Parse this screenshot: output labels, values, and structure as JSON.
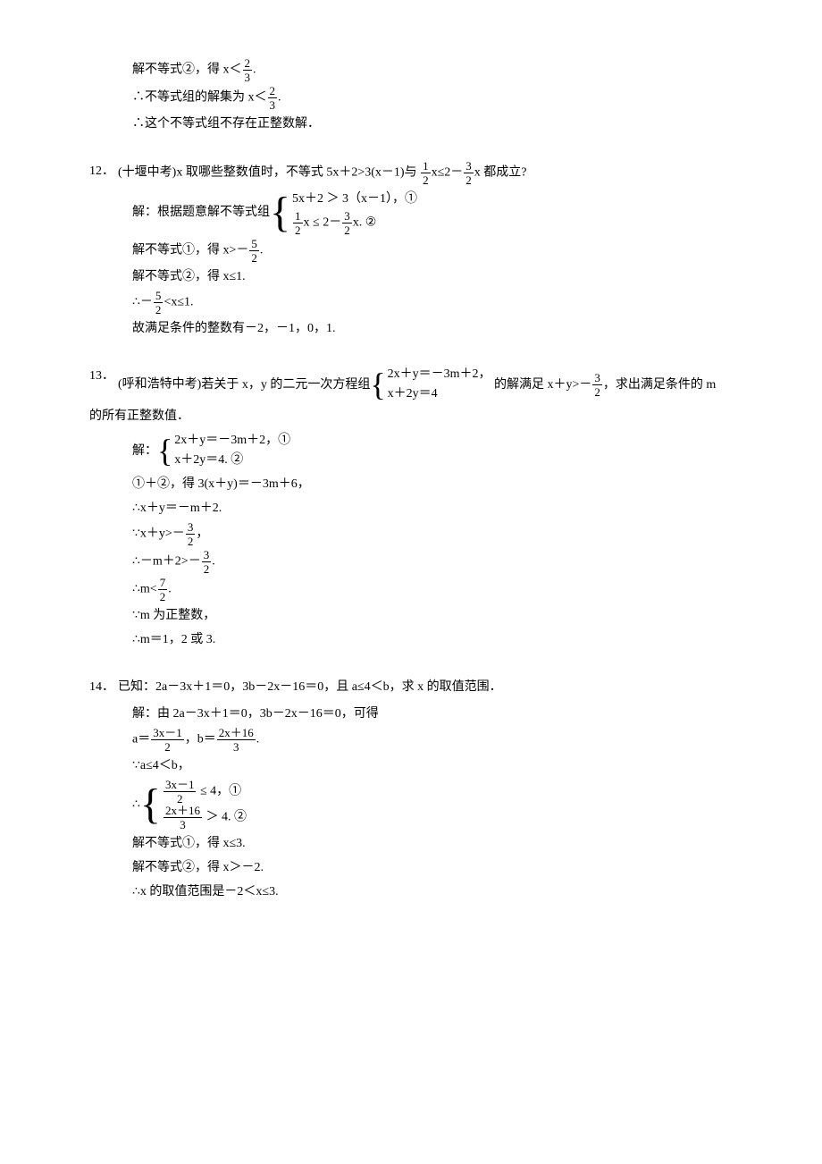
{
  "intro": {
    "line1_pre": "解不等式②，得 x＜",
    "frac1": {
      "num": "2",
      "den": "3"
    },
    "line1_suf": ".",
    "line2_pre": "∴不等式组的解集为 x＜",
    "line2_suf": ".",
    "line3": "∴这个不等式组不存在正整数解．"
  },
  "p12": {
    "num": "12．",
    "source": "(十堰中考)",
    "q_pre": "x 取哪些整数值时，不等式 5x＋2>3(x－1)与 ",
    "frac_a": {
      "num": "1",
      "den": "2"
    },
    "q_mid1": "x≤2－",
    "frac_b": {
      "num": "3",
      "den": "2"
    },
    "q_suf": "x 都成立?",
    "s_open": "解：根据题意解不等式组",
    "sys_eq1": "5x＋2 ＞ 3（x－1），①",
    "sys_eq2_part1": "x  ≤  2－",
    "sys_eq2_part2": "x. ②",
    "l1_pre": "解不等式①，得 x>－",
    "frac_c": {
      "num": "5",
      "den": "2"
    },
    "l1_suf": ".",
    "l2": "解不等式②，得 x≤1.",
    "l3_pre": "∴－",
    "l3_suf": "<x≤1.",
    "l4": "故满足条件的整数有－2，－1，0，1."
  },
  "p13": {
    "num": "13．",
    "source": "(呼和浩特中考)",
    "q_pre": "若关于 x，y 的二元一次方程组",
    "sys_eq1": "2x＋y＝－3m＋2，",
    "sys_eq2": "x＋2y＝4",
    "q_mid": " 的解满足 x＋y>－",
    "frac_a": {
      "num": "3",
      "den": "2"
    },
    "q_suf": "，求出满足条件的 m",
    "q_line2": "的所有正整数值．",
    "s_open": "解：",
    "sol_eq1": "2x＋y＝－3m＋2，①",
    "sol_eq2": "x＋2y＝4. ②",
    "l1": "①＋②，得 3(x＋y)＝－3m＋6，",
    "l2": "∴x＋y＝－m＋2.",
    "l3_pre": "∵x＋y>－",
    "l3_suf": "，",
    "l4_pre": "∴－m＋2>－",
    "l4_suf": ".",
    "l5_pre": "∴m<",
    "frac_b": {
      "num": "7",
      "den": "2"
    },
    "l5_suf": ".",
    "l6": "∵m 为正整数，",
    "l7": "∴m＝1，2 或 3."
  },
  "p14": {
    "num": "14．",
    "q": "已知：2a－3x＋1＝0，3b－2x－16＝0，且 a≤4＜b，求 x 的取值范围．",
    "l0": "解：由 2a－3x＋1＝0，3b－2x－16＝0，可得",
    "l1_pre": "a＝",
    "frac_a": {
      "num": "3x－1",
      "den": "2"
    },
    "l1_mid": "，b＝",
    "frac_b": {
      "num": "2x＋16",
      "den": "3"
    },
    "l1_suf": ".",
    "l2": "∵a≤4＜b，",
    "l3_pre": "∴",
    "sys_eq1_suf": "  ≤  4，①",
    "sys_eq2_suf": " ＞ 4. ②",
    "l4": "解不等式①，得 x≤3.",
    "l5": "解不等式②，得 x＞－2.",
    "l6": "∴x 的取值范围是－2＜x≤3."
  }
}
